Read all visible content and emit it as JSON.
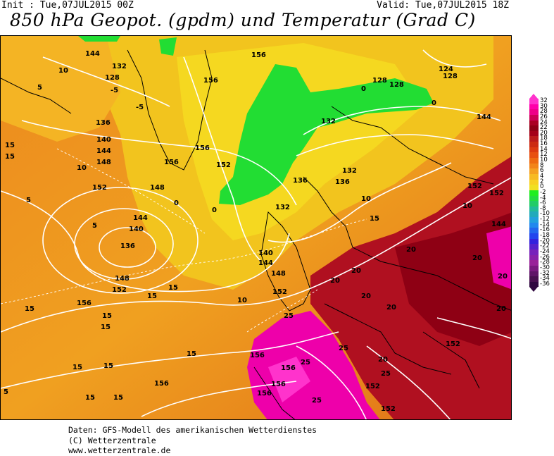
{
  "header": {
    "init_label": "Init : Tue,07JUL2015 00Z",
    "valid_label": "Valid: Tue,07JUL2015 18Z",
    "title": "850 hPa Geopot. (gpdm) und Temperatur (Grad C)"
  },
  "map": {
    "geopotential_labels": [
      "124",
      "128",
      "132",
      "136",
      "140",
      "144",
      "148",
      "152",
      "156"
    ],
    "temperature_labels": [
      "-5",
      "0",
      "5",
      "10",
      "15",
      "20",
      "25"
    ],
    "lowest_geopotential_value": "124",
    "highest_temperature_label": "25",
    "colors": {
      "ocean_warm": "#f0a020",
      "subtropical": "#e88020",
      "cold_green": "#22dd22",
      "hot_red": "#b01020",
      "hot_magenta": "#ee00aa",
      "isohypse": "#ffffff",
      "coastline": "#000000"
    }
  },
  "legend": {
    "labels": [
      "32",
      "30",
      "28",
      "26",
      "24",
      "22",
      "20",
      "18",
      "16",
      "14",
      "12",
      "10",
      "8",
      "6",
      "4",
      "2",
      "0",
      "-2",
      "-4",
      "-6",
      "-8",
      "-10",
      "-12",
      "-14",
      "-16",
      "-18",
      "-20",
      "-22",
      "-24",
      "-26",
      "-28",
      "-30",
      "-32",
      "-34",
      "-36"
    ],
    "colors": [
      "#ff33cc",
      "#ff00aa",
      "#ee0088",
      "#cc0055",
      "#aa0022",
      "#8e0014",
      "#a40018",
      "#bb1a1a",
      "#cc2a12",
      "#dd3a10",
      "#e85010",
      "#ee6a10",
      "#f28418",
      "#f5a020",
      "#f7ba22",
      "#f8d020",
      "#f0e020",
      "#20ee20",
      "#22dd40",
      "#22cc66",
      "#22bb99",
      "#22aabb",
      "#22a0dd",
      "#2288ee",
      "#2266ee",
      "#2244ee",
      "#3322dd",
      "#5522cc",
      "#7722bb",
      "#8822aa",
      "#992299",
      "#7a1a80",
      "#601468",
      "#481050",
      "#300840"
    ]
  },
  "footer": {
    "line1": "Daten: GFS-Modell des amerikanischen Wetterdienstes",
    "line2": "(C) Wetterzentrale",
    "line3": "www.wetterzentrale.de"
  }
}
